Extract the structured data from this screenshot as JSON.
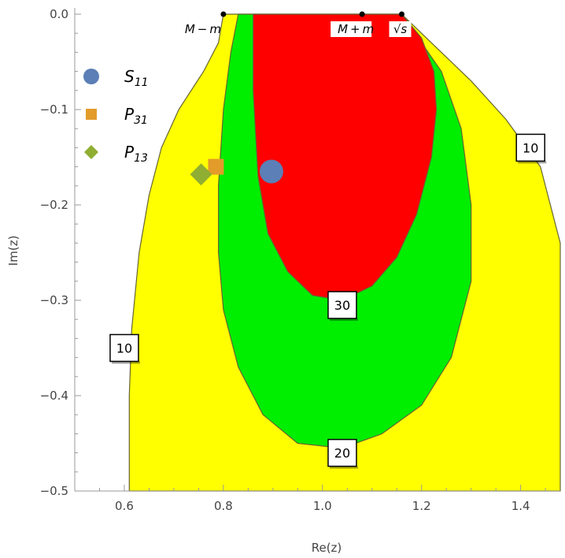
{
  "chart_data": {
    "type": "contour",
    "xlabel": "Re(z)",
    "ylabel": "Im(z)",
    "xlim": [
      0.5,
      1.48
    ],
    "ylim": [
      -0.5,
      0.0
    ],
    "x_ticks": [
      "0.6",
      "0.8",
      "1.0",
      "1.2",
      "1.4"
    ],
    "y_ticks": [
      "0.0",
      "−0.1",
      "−0.2",
      "−0.3",
      "−0.4",
      "−0.5"
    ],
    "colors": {
      "level_10": "#ffff00",
      "level_20": "#00ee00",
      "level_30": "#ff0000",
      "outline": "#666633"
    },
    "regions": [
      {
        "level": "10",
        "color": "level_10",
        "outline": [
          [
            0.8,
            0.0
          ],
          [
            0.79,
            -0.03
          ],
          [
            0.76,
            -0.06
          ],
          [
            0.71,
            -0.1
          ],
          [
            0.675,
            -0.14
          ],
          [
            0.65,
            -0.19
          ],
          [
            0.63,
            -0.25
          ],
          [
            0.615,
            -0.33
          ],
          [
            0.61,
            -0.4
          ],
          [
            0.61,
            -0.5
          ],
          [
            1.48,
            -0.5
          ],
          [
            1.48,
            -0.24
          ],
          [
            1.44,
            -0.16
          ],
          [
            1.37,
            -0.11
          ],
          [
            1.3,
            -0.07
          ],
          [
            1.22,
            -0.03
          ],
          [
            1.16,
            0.0
          ]
        ]
      },
      {
        "level": "20",
        "color": "level_20",
        "outline": [
          [
            0.83,
            0.0
          ],
          [
            0.815,
            -0.04
          ],
          [
            0.8,
            -0.1
          ],
          [
            0.79,
            -0.18
          ],
          [
            0.79,
            -0.25
          ],
          [
            0.8,
            -0.31
          ],
          [
            0.83,
            -0.37
          ],
          [
            0.88,
            -0.42
          ],
          [
            0.95,
            -0.45
          ],
          [
            1.04,
            -0.455
          ],
          [
            1.12,
            -0.44
          ],
          [
            1.2,
            -0.41
          ],
          [
            1.26,
            -0.36
          ],
          [
            1.3,
            -0.28
          ],
          [
            1.3,
            -0.2
          ],
          [
            1.28,
            -0.12
          ],
          [
            1.24,
            -0.06
          ],
          [
            1.16,
            0.0
          ]
        ]
      },
      {
        "level": "30",
        "color": "level_30",
        "outline": [
          [
            0.86,
            0.0
          ],
          [
            0.86,
            -0.08
          ],
          [
            0.87,
            -0.17
          ],
          [
            0.89,
            -0.23
          ],
          [
            0.93,
            -0.27
          ],
          [
            0.98,
            -0.295
          ],
          [
            1.04,
            -0.3
          ],
          [
            1.1,
            -0.285
          ],
          [
            1.15,
            -0.255
          ],
          [
            1.19,
            -0.21
          ],
          [
            1.22,
            -0.15
          ],
          [
            1.23,
            -0.1
          ],
          [
            1.225,
            -0.06
          ],
          [
            1.2,
            -0.025
          ],
          [
            1.16,
            0.0
          ]
        ]
      }
    ],
    "contour_labels": [
      {
        "text": "10",
        "x": 1.42,
        "y": -0.14
      },
      {
        "text": "10",
        "x": 0.6,
        "y": -0.35
      },
      {
        "text": "30",
        "x": 1.04,
        "y": -0.305
      },
      {
        "text": "20",
        "x": 1.04,
        "y": -0.46
      }
    ],
    "reference_points": [
      {
        "label": "M − m",
        "x": 0.8,
        "y": 0.0
      },
      {
        "label": "M + m",
        "x": 1.08,
        "y": 0.0
      },
      {
        "label": "√s",
        "x": 1.16,
        "y": 0.0
      }
    ],
    "series": [
      {
        "name": "S",
        "sub": "11",
        "marker": "circle",
        "color": "#5b7fb6",
        "x": 0.897,
        "y": -0.165
      },
      {
        "name": "P",
        "sub": "31",
        "marker": "square",
        "color": "#e39b2a",
        "x": 0.785,
        "y": -0.16
      },
      {
        "name": "P",
        "sub": "13",
        "marker": "diamond",
        "color": "#8fae32",
        "x": 0.755,
        "y": -0.168
      }
    ],
    "legend_position": "top-left"
  }
}
